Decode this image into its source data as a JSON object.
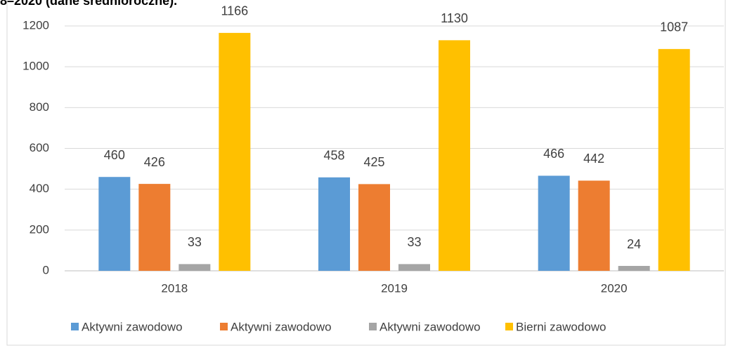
{
  "chart_data": {
    "type": "bar",
    "title": "8–2020 (dane średnioroczne).",
    "categories": [
      "2018",
      "2019",
      "2020"
    ],
    "series": [
      {
        "name": "Aktywni zawodowo",
        "color": "#5b9bd5",
        "values": [
          460,
          458,
          466
        ]
      },
      {
        "name": "Aktywni zawodowo",
        "color": "#ed7d31",
        "values": [
          426,
          425,
          442
        ]
      },
      {
        "name": "Aktywni zawodowo",
        "color": "#a5a5a5",
        "values": [
          33,
          33,
          24
        ]
      },
      {
        "name": "Bierni zawodowo",
        "color": "#ffc000",
        "values": [
          1166,
          1130,
          1087
        ]
      }
    ],
    "ylim": [
      0,
      1200
    ],
    "yticks": [
      0,
      200,
      400,
      600,
      800,
      1000,
      1200
    ],
    "grid": true,
    "legend": "bottom"
  }
}
